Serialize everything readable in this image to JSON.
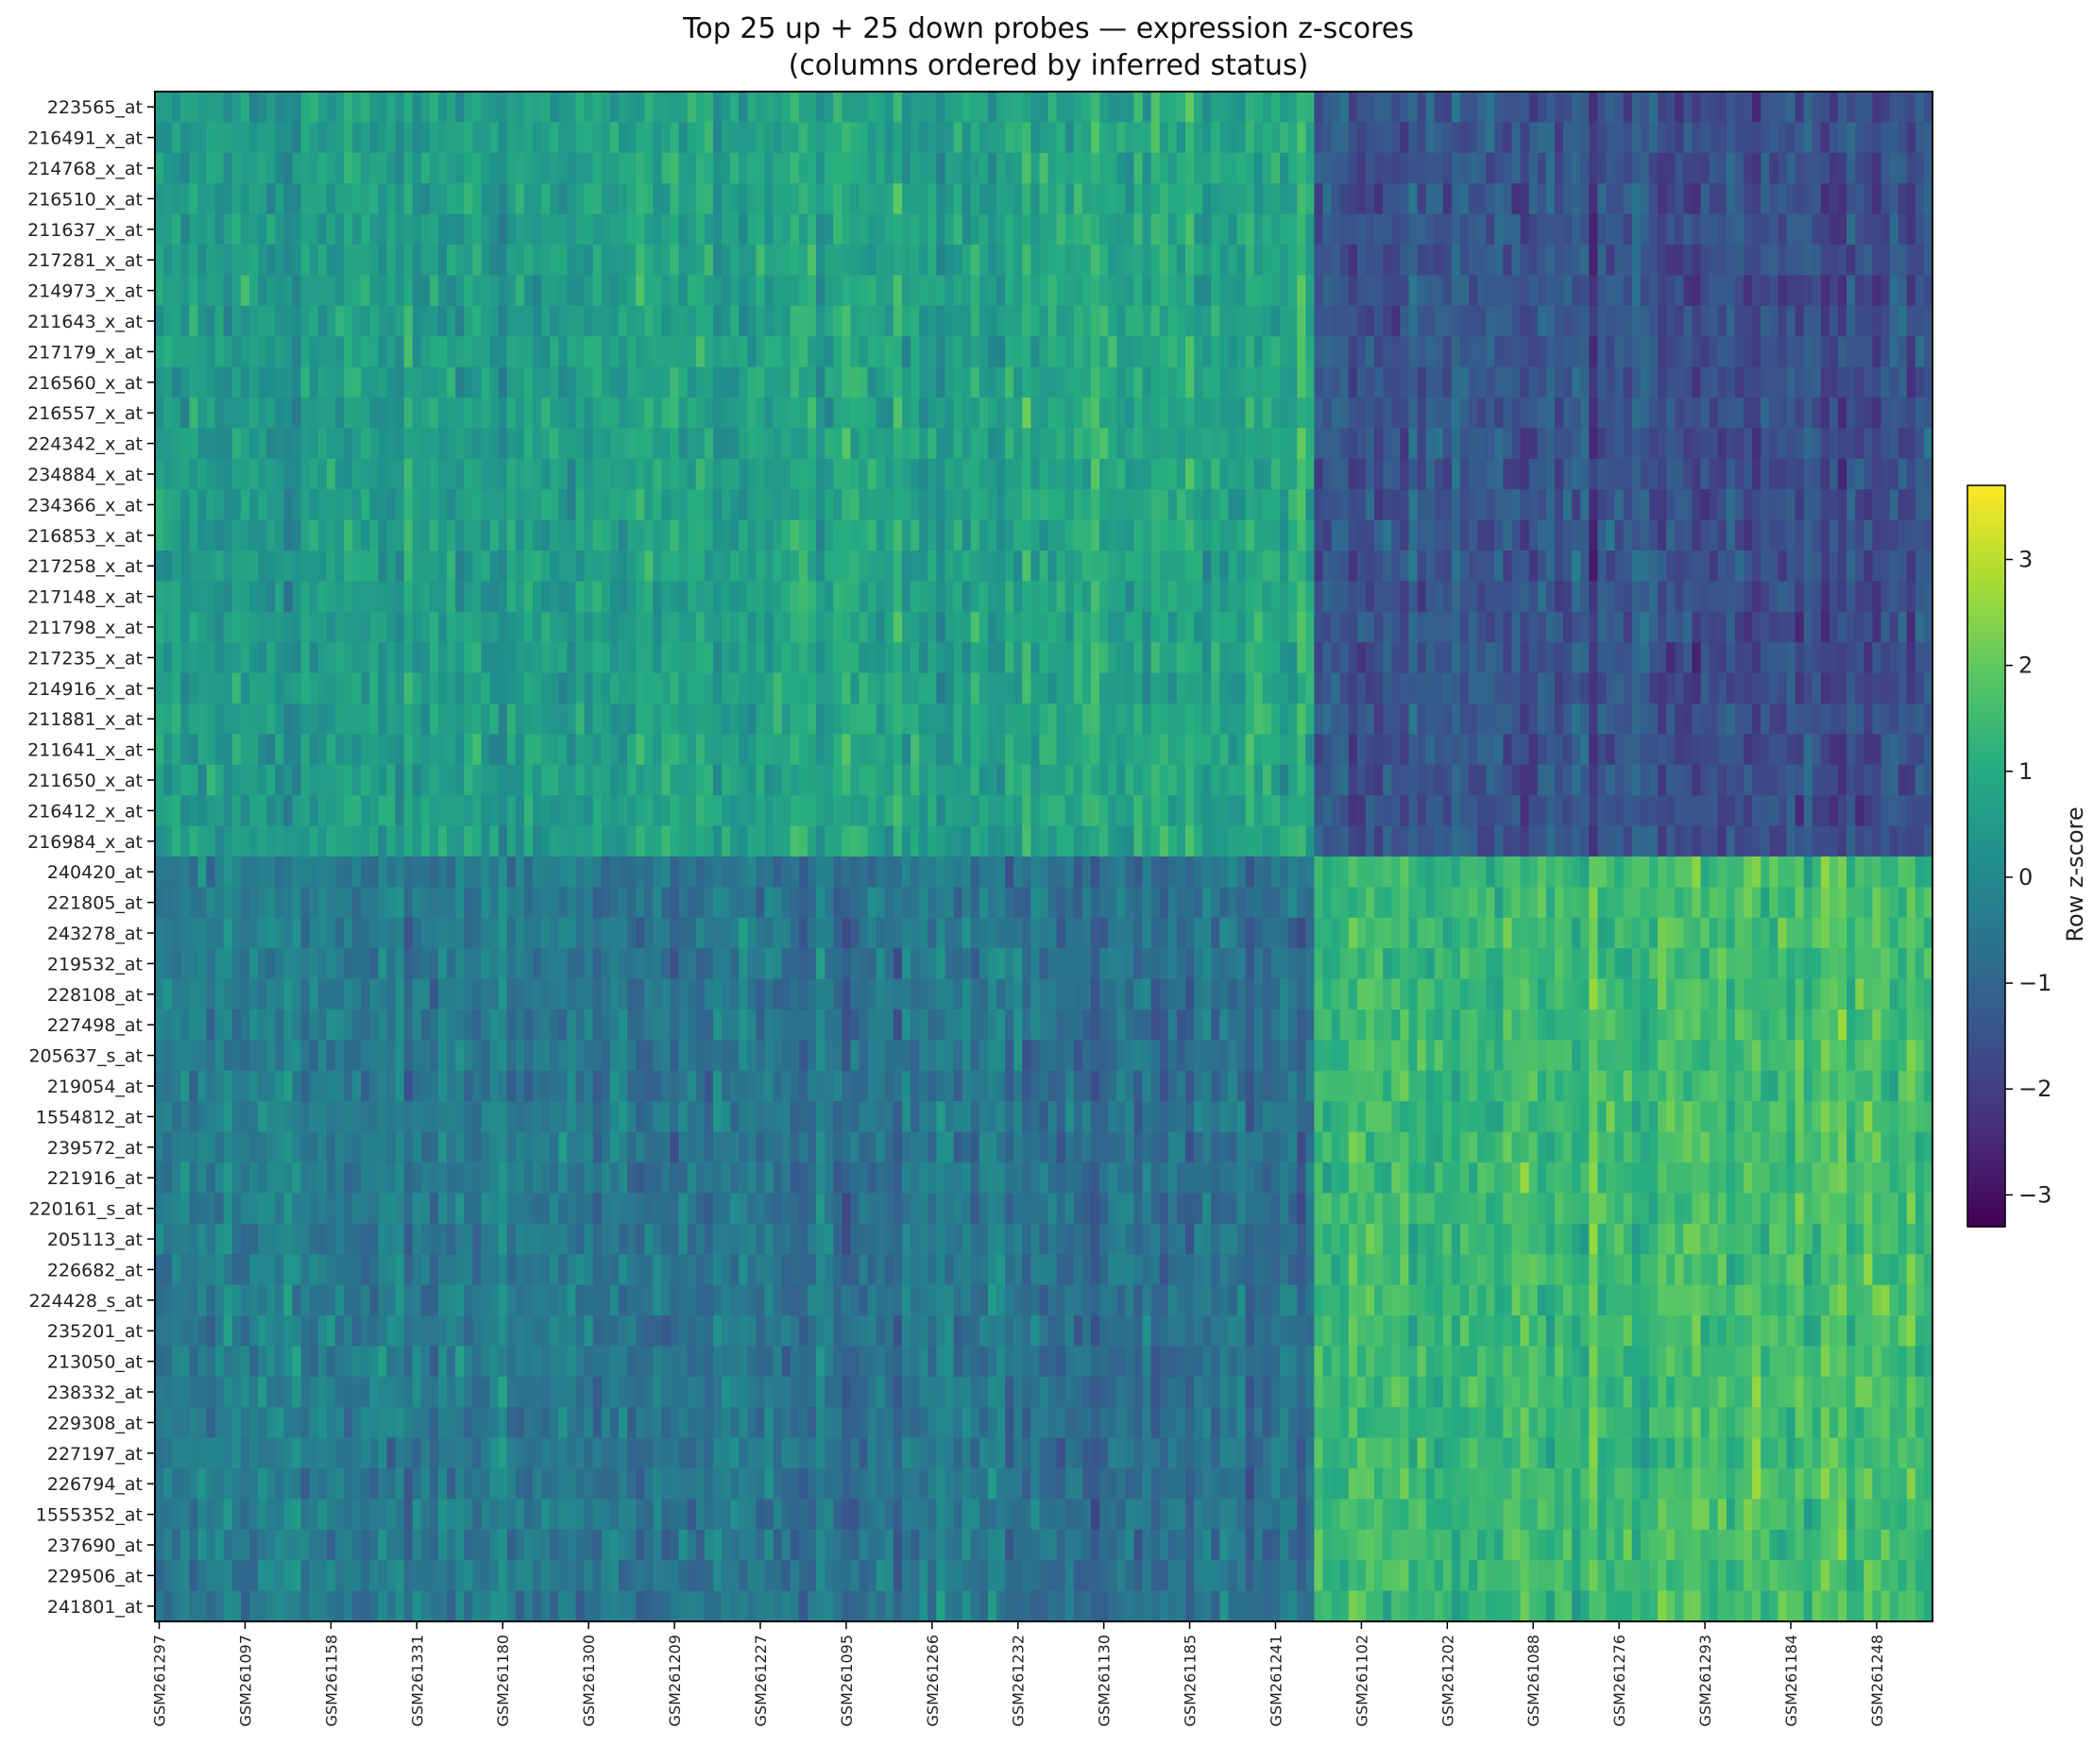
{
  "chart_data": {
    "type": "heatmap",
    "title_line1": "Top 25 up + 25 down probes — expression z-scores",
    "title_line2": "(columns ordered by inferred status)",
    "colorbar_label": "Row z-score",
    "colormap": "viridis",
    "color_range": [
      -3.3,
      3.7
    ],
    "colorbar_ticks": [
      3,
      2,
      1,
      0,
      -1,
      -2,
      -3
    ],
    "colorbar_tick_labels": [
      "3",
      "2",
      "1",
      "0",
      "−1",
      "−2",
      "−3"
    ],
    "n_columns": 207,
    "n_columns_group1": 135,
    "rows": [
      "223565_at",
      "216491_x_at",
      "214768_x_at",
      "216510_x_at",
      "211637_x_at",
      "217281_x_at",
      "214973_x_at",
      "211643_x_at",
      "217179_x_at",
      "216560_x_at",
      "216557_x_at",
      "224342_x_at",
      "234884_x_at",
      "234366_x_at",
      "216853_x_at",
      "217258_x_at",
      "217148_x_at",
      "211798_x_at",
      "217235_x_at",
      "214916_x_at",
      "211881_x_at",
      "211641_x_at",
      "211650_x_at",
      "216412_x_at",
      "216984_x_at",
      "240420_at",
      "221805_at",
      "243278_at",
      "219532_at",
      "228108_at",
      "227498_at",
      "205637_s_at",
      "219054_at",
      "1554812_at",
      "239572_at",
      "221916_at",
      "220161_s_at",
      "205113_at",
      "226682_at",
      "224428_s_at",
      "235201_at",
      "213050_at",
      "238332_at",
      "229308_at",
      "227197_at",
      "226794_at",
      "1555352_at",
      "237690_at",
      "229506_at",
      "241801_at"
    ],
    "column_tick_labels": [
      "GSM261297",
      "GSM261097",
      "GSM261158",
      "GSM261331",
      "GSM261180",
      "GSM261300",
      "GSM261209",
      "GSM261227",
      "GSM261095",
      "GSM261266",
      "GSM261232",
      "GSM261130",
      "GSM261185",
      "GSM261241",
      "GSM261102",
      "GSM261202",
      "GSM261088",
      "GSM261276",
      "GSM261293",
      "GSM261184",
      "GSM261248"
    ],
    "block_means": {
      "up_rows_group1": 0.7,
      "up_rows_group2": -1.5,
      "down_rows_group1": -0.5,
      "down_rows_group2": 1.5
    }
  }
}
